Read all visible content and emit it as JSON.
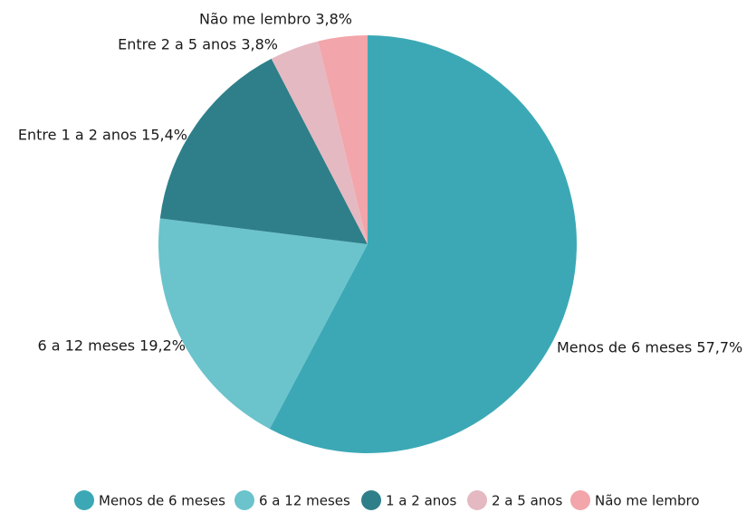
{
  "chart_data": {
    "type": "pie",
    "categories": [
      "Menos de 6 meses",
      "6 a 12 meses",
      "1 a 2 anos",
      "2 a 5 anos",
      "Não me lembro"
    ],
    "values": [
      57.7,
      19.2,
      15.4,
      3.8,
      3.8
    ],
    "value_labels": [
      "Menos de 6 meses 57,7%",
      "6 a 12 meses 19,2%",
      "Entre 1 a 2 anos 15,4%",
      "Entre 2 a 5 anos 3,8%",
      "Não me lembro 3,8%"
    ],
    "colors": [
      "#3ca8b5",
      "#6bc3cc",
      "#2e7f89",
      "#e5b9c1",
      "#f2a5aa"
    ],
    "legend": "bottom"
  }
}
